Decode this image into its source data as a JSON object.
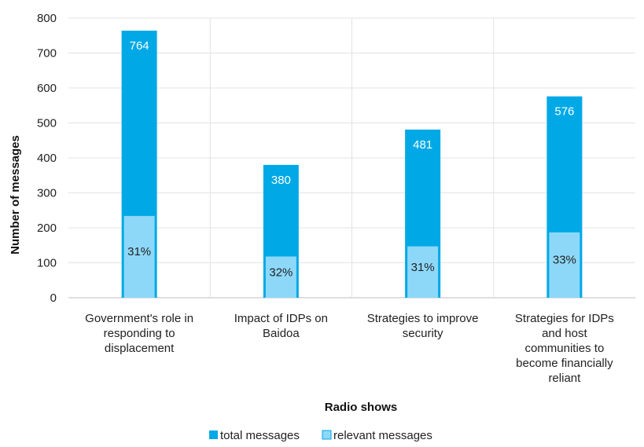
{
  "chart_data": {
    "type": "bar",
    "xlabel": "Radio shows",
    "ylabel": "Number of messages",
    "ylim": [
      0,
      800
    ],
    "yticks": [
      0,
      100,
      200,
      300,
      400,
      500,
      600,
      700,
      800
    ],
    "grid": true,
    "legend_position": "bottom",
    "categories": [
      [
        "Government's role in",
        "responding to",
        "displacement"
      ],
      [
        "Impact of IDPs on",
        "Baidoa"
      ],
      [
        "Strategies to improve",
        "security"
      ],
      [
        "Strategies for IDPs",
        "and host",
        "communities to",
        "become financially",
        "reliant"
      ]
    ],
    "series": [
      {
        "name": "total messages",
        "values": [
          764,
          380,
          481,
          576
        ],
        "labels": [
          "764",
          "380",
          "481",
          "576"
        ],
        "color": "#00A9E6"
      },
      {
        "name": "relevant messages",
        "values": [
          234,
          118,
          147,
          187
        ],
        "labels": [
          "31%",
          "32%",
          "31%",
          "33%"
        ],
        "color": "#8DD8F8"
      }
    ]
  }
}
